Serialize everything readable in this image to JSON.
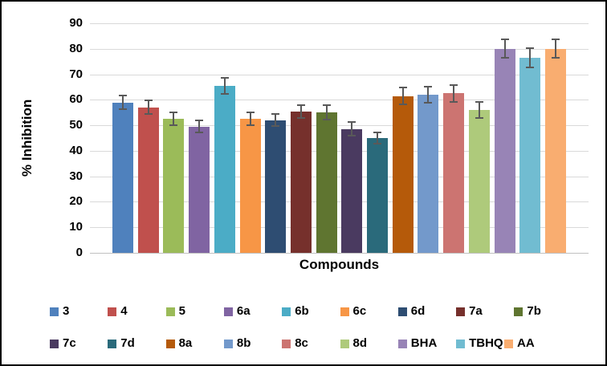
{
  "figure": {
    "background": "#FFFFFF",
    "border_color": "#000000"
  },
  "chart_data": {
    "type": "bar",
    "title": "",
    "xlabel": "Compounds",
    "ylabel": "% Inhibition",
    "ylim": [
      0,
      90
    ],
    "ytick_step": 10,
    "grid": true,
    "gridline_color": "#D9D9D9",
    "axis_line_color": "#C0C0C0",
    "error_bar_color": "#595959",
    "legend_position": "bottom",
    "legend_rows": [
      [
        "3",
        "4",
        "5",
        "6a",
        "6b",
        "6c",
        "6d",
        "7a",
        "7b"
      ],
      [
        "7c",
        "7d",
        "8a",
        "8b",
        "8c",
        "8d",
        "BHA",
        "TBHQ",
        "AA"
      ]
    ],
    "categories": [
      "3",
      "4",
      "5",
      "6a",
      "6b",
      "6c",
      "6d",
      "7a",
      "7b",
      "7c",
      "7d",
      "8a",
      "8b",
      "8c",
      "8d",
      "BHA",
      "TBHQ",
      "AA"
    ],
    "values": [
      59,
      57,
      52.5,
      49.5,
      65.5,
      52.5,
      52,
      55.5,
      55,
      48.5,
      45,
      61.5,
      62,
      62.5,
      56,
      80,
      76.5,
      80
    ],
    "errors": [
      3,
      3,
      2.8,
      2.7,
      3.5,
      2.8,
      2.6,
      2.8,
      3.2,
      3,
      2.6,
      3.7,
      3.5,
      3.7,
      3.4,
      4,
      4,
      4
    ],
    "colors": [
      "#4F81BD",
      "#C0504D",
      "#9BBB59",
      "#8064A2",
      "#4BACC6",
      "#F79646",
      "#2E4D72",
      "#76302C",
      "#5F7530",
      "#4A3A60",
      "#2A6A7B",
      "#B55A0A",
      "#7399CB",
      "#CC7471",
      "#AECA7B",
      "#9884B6",
      "#71BCD1",
      "#F9AD70"
    ]
  }
}
